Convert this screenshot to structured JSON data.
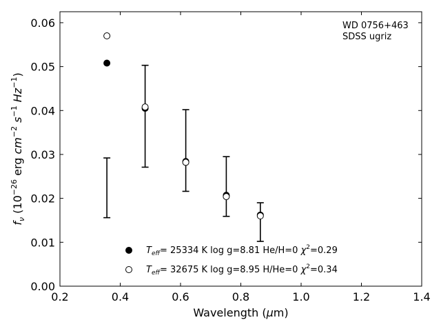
{
  "chart_data": {
    "type": "scatter",
    "title": "",
    "xlabel": {
      "pre": "Wavelength (",
      "mu": "μ",
      "post": "m)"
    },
    "ylabel": {
      "f": "f",
      "nu": "ν",
      "a": " (10",
      "e1": "−26",
      "b": " erg ",
      "cm": "cm",
      "e2": "−2",
      "s": " s",
      "e3": "−1",
      "hz": " Hz",
      "e4": "−1",
      "c": ")"
    },
    "xlim": [
      0.2,
      1.4
    ],
    "ylim": [
      0.0,
      0.0625
    ],
    "xticks": [
      "0.2",
      "0.4",
      "0.6",
      "0.8",
      "1.0",
      "1.2",
      "1.4"
    ],
    "yticks": [
      "0.00",
      "0.01",
      "0.02",
      "0.03",
      "0.04",
      "0.05",
      "0.06"
    ],
    "annotation": [
      "WD 0756+463",
      "SDSS ugriz"
    ],
    "observed": {
      "x": [
        0.3557,
        0.4825,
        0.6174,
        0.7518,
        0.8647
      ],
      "y": [
        0.0224,
        0.0387,
        0.0309,
        0.0227,
        0.0146
      ],
      "yerr": [
        0.0068,
        0.0116,
        0.0093,
        0.0068,
        0.0044
      ]
    },
    "series": [
      {
        "marker": "filled",
        "x": [
          0.3557,
          0.4825,
          0.6174,
          0.7518,
          0.8647
        ],
        "y": [
          0.0508,
          0.0405,
          0.0284,
          0.0207,
          0.0162
        ]
      },
      {
        "marker": "open",
        "x": [
          0.3557,
          0.4825,
          0.6174,
          0.7518,
          0.8647
        ],
        "y": [
          0.057,
          0.0408,
          0.0282,
          0.0204,
          0.016
        ]
      }
    ],
    "legend": [
      {
        "T": "T",
        "eff": "eff",
        "text": "= 25334 K  log g=8.81  He/H=0  ",
        "chi": "χ",
        "two": "2",
        "val": "=0.29"
      },
      {
        "T": "T",
        "eff": "eff",
        "text": "= 32675 K  log g=8.95  H/He=0  ",
        "chi": "χ",
        "two": "2",
        "val": "=0.34"
      }
    ],
    "legend_position": "lower center",
    "grid": false
  }
}
